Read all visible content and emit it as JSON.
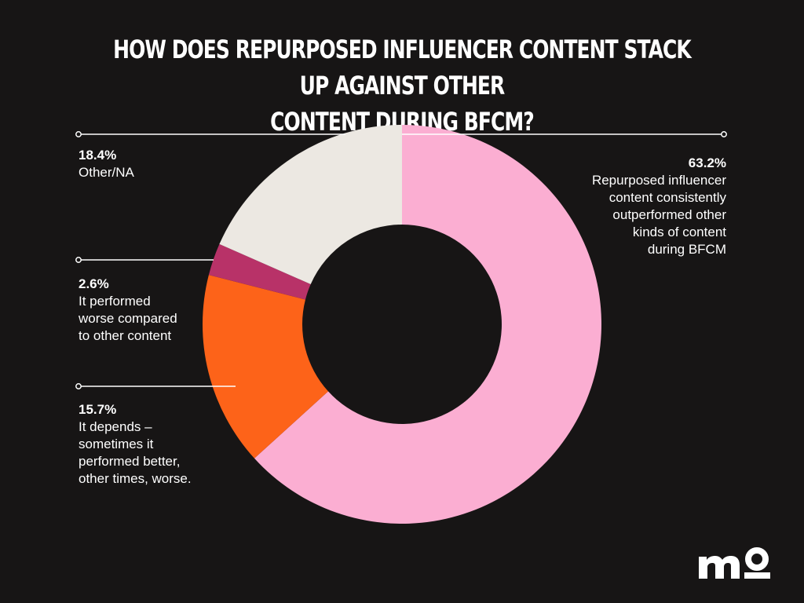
{
  "chart_data": {
    "type": "pie",
    "title": "HOW DOES REPURPOSED INFLUENCER CONTENT STACK UP AGAINST OTHER CONTENT DURING BFCM?",
    "title_lines": [
      "HOW DOES REPURPOSED INFLUENCER CONTENT STACK UP AGAINST OTHER",
      "CONTENT DURING BFCM?"
    ],
    "donut": true,
    "start": "12 o'clock",
    "direction": "clockwise",
    "legend": "none (annotated callouts)",
    "slices": [
      {
        "value": 63.2,
        "label": "63.2%",
        "description": "Repurposed influencer\ncontent consistently\noutperformed other\nkinds of content\nduring BFCM",
        "color": "#fbaed2"
      },
      {
        "value": 15.7,
        "label": "15.7%",
        "description": "It depends –\nsometimes it\nperformed better,\nother times, worse.",
        "color": "#fd6319"
      },
      {
        "value": 2.6,
        "label": "2.6%",
        "description": "It performed\nworse compared\nto other content",
        "color": "#b83268"
      },
      {
        "value": 18.4,
        "label": "18.4%",
        "description": "Other/NA",
        "color": "#ece8e2"
      }
    ]
  },
  "colors": {
    "background": "#171515",
    "text": "#ffffff",
    "leader_line": "#ffffff"
  },
  "logo": {
    "text": "mo",
    "icon": "mo-logo-icon"
  }
}
